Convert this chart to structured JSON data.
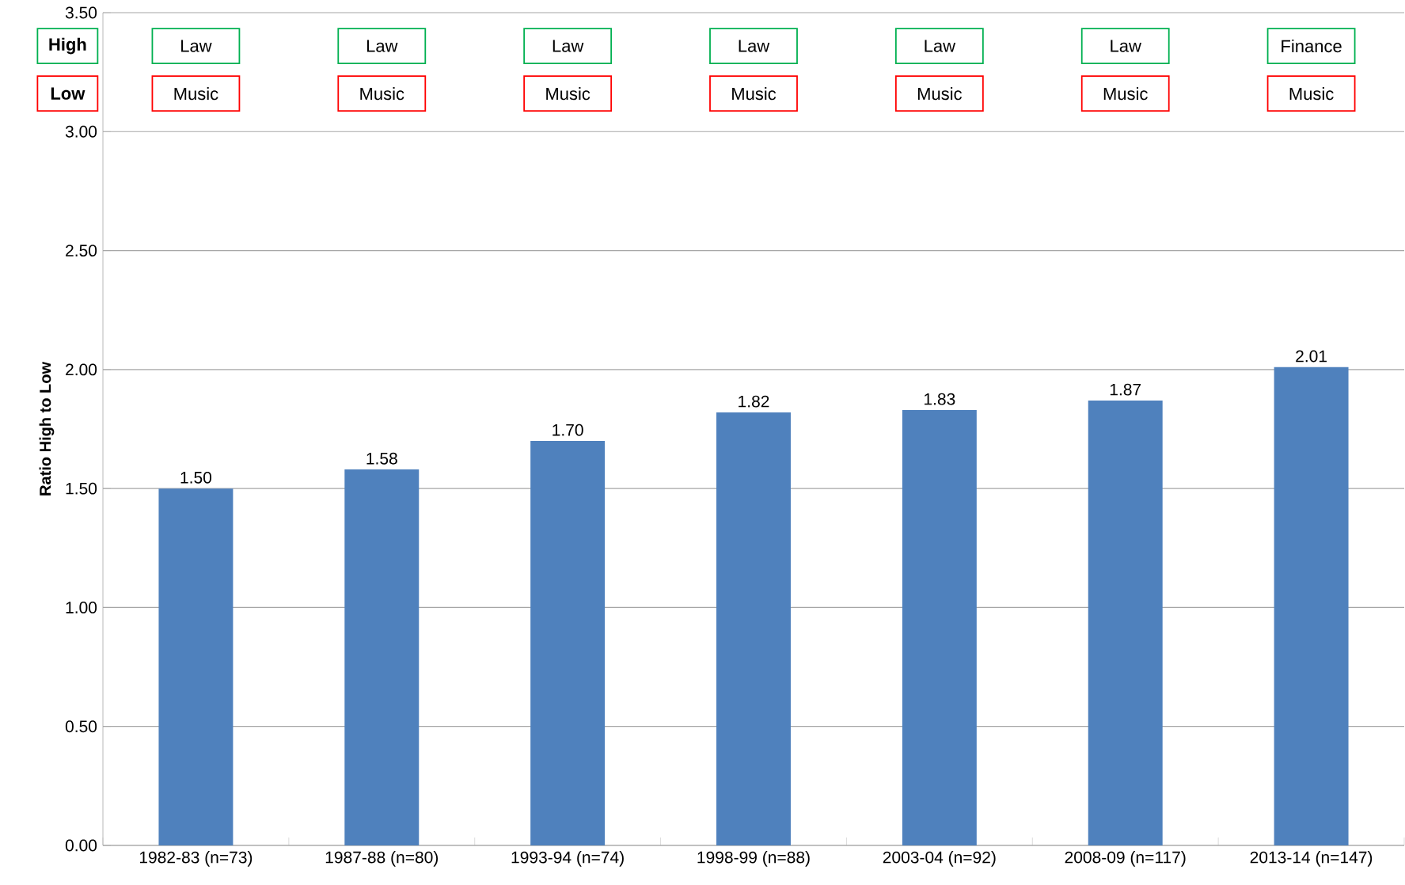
{
  "chart_data": {
    "type": "bar",
    "ylabel": "Ratio High to Low",
    "categories": [
      "1982-83 (n=73)",
      "1987-88 (n=80)",
      "1993-94 (n=74)",
      "1998-99 (n=88)",
      "2003-04 (n=92)",
      "2008-09 (n=117)",
      "2013-14 (n=147)"
    ],
    "values": [
      1.5,
      1.58,
      1.7,
      1.82,
      1.83,
      1.87,
      2.01
    ],
    "value_labels": [
      "1.50",
      "1.58",
      "1.70",
      "1.82",
      "1.83",
      "1.87",
      "2.01"
    ],
    "color": "#4f81bd",
    "ylim": [
      0,
      3.5
    ],
    "yticks": [
      {
        "value": 0,
        "label": "0.00"
      },
      {
        "value": 0.5,
        "label": "0.50"
      },
      {
        "value": 1,
        "label": "1.00"
      },
      {
        "value": 1.5,
        "label": "1.50"
      },
      {
        "value": 2,
        "label": "2.00"
      },
      {
        "value": 2.5,
        "label": "2.50"
      },
      {
        "value": 3,
        "label": "3.00"
      },
      {
        "value": 3.5,
        "label": "3.50"
      }
    ],
    "grid": "y",
    "annotations": [
      "High",
      "Low",
      "Law",
      "Music",
      "Law",
      "Music",
      "Law",
      "Music",
      "Law",
      "Music",
      "Law",
      "Music",
      "Law",
      "Music",
      "Finance",
      "Music"
    ]
  }
}
